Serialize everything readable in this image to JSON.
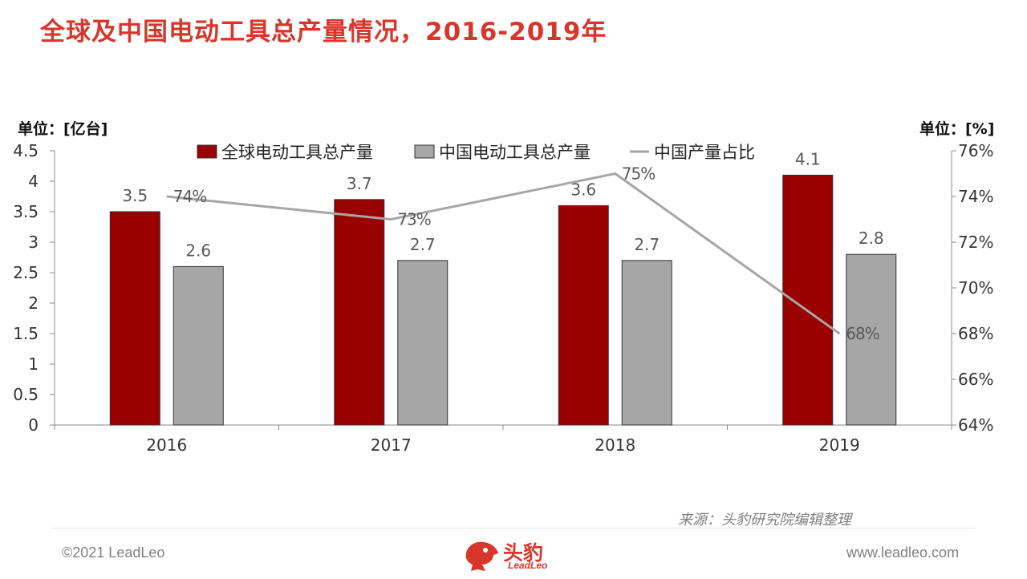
{
  "title": "全球及中国电动工具总产量情况，2016-2019年",
  "unit_left": "单位：[亿台]",
  "unit_right": "单位：[%]",
  "source": "来源：头豹研究院编辑整理",
  "footer": {
    "copyright": "©2021 LeadLeo",
    "website": "www.leadleo.com",
    "logo_cn": "头豹",
    "logo_en": "LeadLeo"
  },
  "colors": {
    "global": "#9b0000",
    "china": "#a6a6a6",
    "share_line": "#a6a6a6",
    "title": "#d8362b"
  },
  "chart_data": {
    "type": "bar",
    "categories": [
      "2016",
      "2017",
      "2018",
      "2019"
    ],
    "series": [
      {
        "name": "全球电动工具总产量",
        "type": "bar",
        "axis": "left",
        "values": [
          3.5,
          3.7,
          3.6,
          4.1
        ],
        "labels": [
          "3.5",
          "3.7",
          "3.6",
          "4.1"
        ]
      },
      {
        "name": "中国电动工具总产量",
        "type": "bar",
        "axis": "left",
        "values": [
          2.6,
          2.7,
          2.7,
          2.8
        ],
        "labels": [
          "2.6",
          "2.7",
          "2.7",
          "2.8"
        ]
      },
      {
        "name": "中国产量占比",
        "type": "line",
        "axis": "right",
        "values": [
          74,
          73,
          75,
          68
        ],
        "labels": [
          "74%",
          "73%",
          "75%",
          "68%"
        ]
      }
    ],
    "ylim": [
      0,
      4.5
    ],
    "yticks": [
      "0",
      "0.5",
      "1",
      "1.5",
      "2",
      "2.5",
      "3",
      "3.5",
      "4",
      "4.5"
    ],
    "y2lim": [
      64,
      76
    ],
    "y2ticks": [
      "64%",
      "66%",
      "68%",
      "70%",
      "72%",
      "74%",
      "76%"
    ],
    "legend_position": "top",
    "grid": false
  }
}
